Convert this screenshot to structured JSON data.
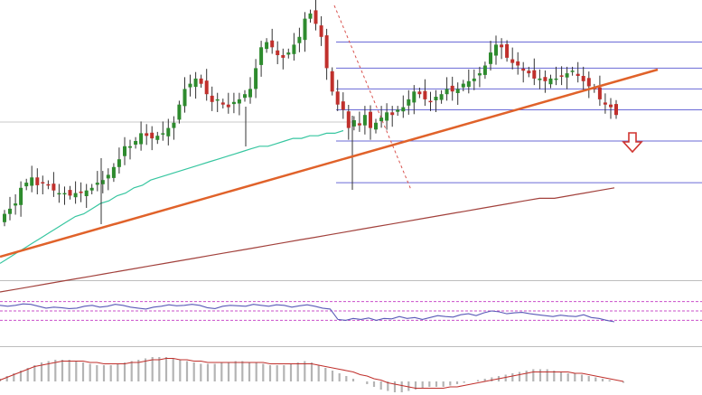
{
  "chart_data": [
    {
      "type": "candlestick",
      "panel": "price",
      "colors": {
        "bull": "#2e8b2e",
        "bear": "#c0302c",
        "wick": "#333333"
      },
      "candles": [
        {
          "o": 0.0,
          "h": 0.0,
          "l": 0.0,
          "c": 0.0
        }
      ],
      "price_scale": {
        "min": 0,
        "max": 100
      },
      "series": [
        {
          "kind": "trendline",
          "color": "#e0622a",
          "from": [
            0,
            2
          ],
          "to": [
            118,
            38
          ]
        },
        {
          "kind": "moving_average_fast",
          "color": "#37c6a0",
          "values": [
            3,
            5,
            7,
            9,
            11,
            13,
            15,
            17,
            19,
            21,
            22,
            24,
            26,
            27,
            29,
            30,
            32,
            33,
            35,
            36,
            37,
            38,
            39,
            40,
            41,
            42,
            43,
            44,
            45,
            46,
            47,
            48,
            48,
            49,
            50,
            51,
            51,
            52,
            52,
            53,
            53,
            54
          ]
        },
        {
          "kind": "moving_average_slow",
          "color": "#a2413c",
          "values": [
            -8,
            -7,
            -6,
            -5,
            -4,
            -3,
            -2,
            -1,
            0,
            1,
            2,
            3,
            4,
            5,
            6,
            7,
            8,
            9,
            10,
            11,
            12,
            13,
            14,
            15,
            16,
            17,
            18,
            19,
            20,
            21,
            22,
            23,
            24,
            25,
            26,
            27,
            28,
            28,
            29,
            30,
            31,
            32
          ]
        }
      ],
      "fib_levels": [
        {
          "value": 88,
          "color": "#6a6ad6"
        },
        {
          "value": 78,
          "color": "#6a6ad6"
        },
        {
          "value": 70,
          "color": "#6a6ad6"
        },
        {
          "value": 62,
          "color": "#6a6ad6"
        },
        {
          "value": 50,
          "color": "#6a6ad6"
        },
        {
          "value": 34,
          "color": "#6a6ad6"
        }
      ],
      "grid": false
    },
    {
      "type": "line",
      "panel": "oscillator",
      "colors": {
        "line": "#5a5ab8",
        "level": "#c94fc9"
      },
      "levels": [
        70,
        50,
        30
      ],
      "values": [
        62,
        60,
        62,
        65,
        64,
        60,
        56,
        58,
        57,
        55,
        56,
        60,
        62,
        58,
        60,
        64,
        62,
        58,
        56,
        54,
        58,
        60,
        63,
        61,
        62,
        64,
        62,
        57,
        55,
        60,
        62,
        61,
        60,
        64,
        62,
        60,
        63,
        62,
        58,
        61,
        63,
        60,
        56,
        54,
        32,
        30,
        34,
        32,
        35,
        30,
        34,
        33,
        38,
        34,
        36,
        32,
        36,
        40,
        38,
        37,
        42,
        44,
        40,
        46,
        50,
        48,
        44,
        46,
        47,
        44,
        42,
        40,
        38,
        41,
        39,
        38,
        42,
        36,
        34,
        30,
        27
      ]
    },
    {
      "type": "histogram",
      "panel": "macd",
      "colors": {
        "bar": "#b4b4b4",
        "signal": "#c0302c"
      },
      "values": [
        2,
        4,
        6,
        8,
        10,
        12,
        14,
        15,
        16,
        16,
        16,
        15,
        14,
        13,
        12,
        12,
        12,
        13,
        14,
        15,
        16,
        17,
        18,
        18,
        18,
        17,
        16,
        15,
        14,
        13,
        13,
        13,
        14,
        14,
        15,
        15,
        14,
        14,
        13,
        12,
        12,
        12,
        13,
        14,
        15,
        14,
        12,
        10,
        8,
        6,
        4,
        2,
        0,
        -2,
        -4,
        -6,
        -7,
        -8,
        -8,
        -7,
        -6,
        -5,
        -4,
        -4,
        -4,
        -3,
        -2,
        -1,
        0,
        1,
        2,
        3,
        4,
        5,
        6,
        7,
        8,
        9,
        9,
        9,
        8,
        7,
        6,
        6,
        5,
        4,
        3,
        2,
        1,
        0,
        -1
      ],
      "signal": [
        1,
        3,
        5,
        7,
        9,
        11,
        12,
        13,
        14,
        15,
        15,
        15,
        15,
        14,
        14,
        13,
        13,
        13,
        13,
        14,
        14,
        15,
        16,
        16,
        17,
        17,
        16,
        16,
        15,
        15,
        14,
        14,
        14,
        14,
        14,
        14,
        14,
        14,
        14,
        13,
        13,
        13,
        13,
        13,
        13,
        13,
        12,
        11,
        10,
        9,
        8,
        7,
        5,
        4,
        2,
        1,
        -1,
        -2,
        -3,
        -4,
        -5,
        -5,
        -5,
        -5,
        -5,
        -4,
        -4,
        -3,
        -2,
        -1,
        0,
        1,
        2,
        3,
        4,
        5,
        6,
        7,
        7,
        7,
        7,
        7,
        7,
        6,
        6,
        5,
        4,
        3,
        2,
        1,
        0
      ]
    }
  ],
  "annotations": {
    "arrow_color": "#d0342f",
    "arrow_icon": "down-arrow-icon"
  }
}
